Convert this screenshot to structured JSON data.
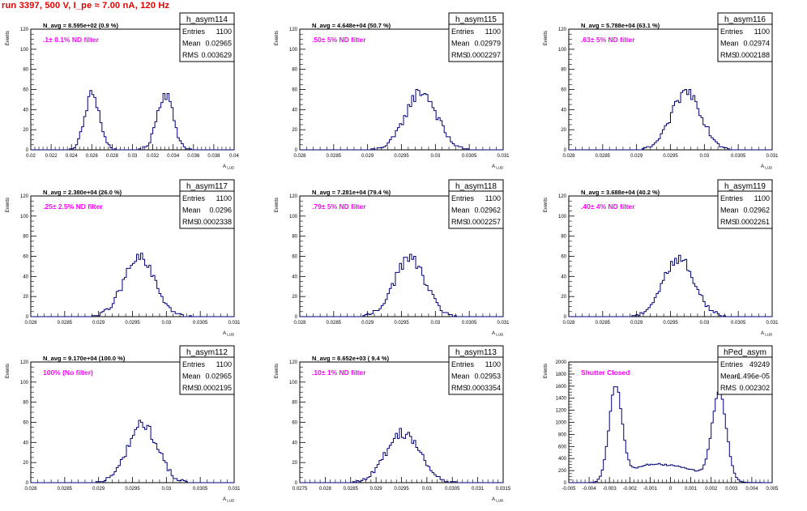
{
  "run_title": "run 3397,   500 V, I_pe ≈ 7.00 nA, 120 Hz",
  "colors": {
    "title": "#e00000",
    "histogram": "#00007a",
    "annotation": "#ff00ff"
  },
  "chart_data": [
    {
      "type": "histogram",
      "name": "h_asym114",
      "stats": {
        "labels": [
          "Entries",
          "Mean",
          "RMS"
        ],
        "values": [
          "1100",
          "0.02965",
          "0.003629"
        ]
      },
      "annotation": "N_avg = 8.595e+02 (0.9 %)",
      "label": ".1± 0.1% ND filter",
      "xlabel": "A_{LUD}",
      "ylabel": "Events",
      "xlim": [
        0.02,
        0.04
      ],
      "ylim": [
        0,
        120
      ],
      "xticks": [
        "0.02",
        "0.022",
        "0.024",
        "0.026",
        "0.028",
        "0.03",
        "0.032",
        "0.034",
        "0.036",
        "0.038",
        "0.04"
      ],
      "yticks": [
        "0",
        "20",
        "40",
        "60",
        "80",
        "100",
        "120"
      ],
      "peaks": [
        {
          "mean": 0.02605,
          "sigma": 0.00072,
          "amp": 56
        },
        {
          "mean": 0.0332,
          "sigma": 0.0008,
          "amp": 56
        }
      ]
    },
    {
      "type": "histogram",
      "name": "h_asym115",
      "stats": {
        "labels": [
          "Entries",
          "Mean",
          "RMS"
        ],
        "values": [
          "1100",
          "0.02979",
          "0.0002297"
        ]
      },
      "annotation": "N_avg = 4.648e+04 (50.7 %)",
      "label": ".50± 5% ND filter",
      "xlabel": "A_{LUD}",
      "ylabel": "Events",
      "xlim": [
        0.028,
        0.031
      ],
      "ylim": [
        0,
        120
      ],
      "xticks": [
        "0.028",
        "0.0285",
        "0.029",
        "0.0295",
        "0.03",
        "0.0305",
        "0.031"
      ],
      "yticks": [
        "0",
        "20",
        "40",
        "60",
        "80",
        "100",
        "120"
      ],
      "peaks": [
        {
          "mean": 0.02979,
          "sigma": 0.00023,
          "amp": 58
        }
      ]
    },
    {
      "type": "histogram",
      "name": "h_asym116",
      "stats": {
        "labels": [
          "Entries",
          "Mean",
          "RMS"
        ],
        "values": [
          "1100",
          "0.02974",
          "0.0002188"
        ]
      },
      "annotation": "N_avg = 5.788e+04 (63.1 %)",
      "label": ".63± 5% ND filter",
      "xlabel": "A_{LUD}",
      "ylabel": "Events",
      "xlim": [
        0.028,
        0.031
      ],
      "ylim": [
        0,
        120
      ],
      "xticks": [
        "0.028",
        "0.0285",
        "0.029",
        "0.0295",
        "0.03",
        "0.0305",
        "0.031"
      ],
      "yticks": [
        "0",
        "20",
        "40",
        "60",
        "80",
        "100",
        "120"
      ],
      "peaks": [
        {
          "mean": 0.02974,
          "sigma": 0.00022,
          "amp": 58
        }
      ]
    },
    {
      "type": "histogram",
      "name": "h_asym117",
      "stats": {
        "labels": [
          "Entries",
          "Mean",
          "RMS"
        ],
        "values": [
          "1100",
          "0.0296",
          "0.0002338"
        ]
      },
      "annotation": "N_avg = 2.380e+04 (26.0 %)",
      "label": ".25± 2.5% ND filter",
      "xlabel": "A_{LUD}",
      "ylabel": "Events",
      "xlim": [
        0.028,
        0.031
      ],
      "ylim": [
        0,
        120
      ],
      "xticks": [
        "0.028",
        "0.0285",
        "0.029",
        "0.0295",
        "0.03",
        "0.0305",
        "0.031"
      ],
      "yticks": [
        "0",
        "20",
        "40",
        "60",
        "80",
        "100",
        "120"
      ],
      "peaks": [
        {
          "mean": 0.0296,
          "sigma": 0.00023,
          "amp": 58
        }
      ]
    },
    {
      "type": "histogram",
      "name": "h_asym118",
      "stats": {
        "labels": [
          "Entries",
          "Mean",
          "RMS"
        ],
        "values": [
          "1100",
          "0.02962",
          "0.0002257"
        ]
      },
      "annotation": "N_avg = 7.281e+04 (79.4 %)",
      "label": ".79± 5% ND filter",
      "xlabel": "A_{LUD}",
      "ylabel": "Events",
      "xlim": [
        0.028,
        0.031
      ],
      "ylim": [
        0,
        120
      ],
      "xticks": [
        "0.028",
        "0.0285",
        "0.029",
        "0.0295",
        "0.03",
        "0.0305",
        "0.031"
      ],
      "yticks": [
        "0",
        "20",
        "40",
        "60",
        "80",
        "100",
        "120"
      ],
      "peaks": [
        {
          "mean": 0.02962,
          "sigma": 0.00023,
          "amp": 58
        }
      ]
    },
    {
      "type": "histogram",
      "name": "h_asym119",
      "stats": {
        "labels": [
          "Entries",
          "Mean",
          "RMS"
        ],
        "values": [
          "1100",
          "0.02962",
          "0.0002261"
        ]
      },
      "annotation": "N_avg = 3.688e+04 (40.2 %)",
      "label": ".40± 4% ND filter",
      "xlabel": "A_{LUD}",
      "ylabel": "Events",
      "xlim": [
        0.028,
        0.031
      ],
      "ylim": [
        0,
        120
      ],
      "xticks": [
        "0.028",
        "0.0285",
        "0.029",
        "0.0295",
        "0.03",
        "0.0305",
        "0.031"
      ],
      "yticks": [
        "0",
        "20",
        "40",
        "60",
        "80",
        "100",
        "120"
      ],
      "peaks": [
        {
          "mean": 0.02962,
          "sigma": 0.00023,
          "amp": 58
        }
      ]
    },
    {
      "type": "histogram",
      "name": "h_asym112",
      "stats": {
        "labels": [
          "Entries",
          "Mean",
          "RMS"
        ],
        "values": [
          "1100",
          "0.02965",
          "0.0002195"
        ]
      },
      "annotation": "N_avg = 9.170e+04 (100.0 %)",
      "label": "100% (No filter)",
      "xlabel": "A_{LUD}",
      "ylabel": "Events",
      "xlim": [
        0.028,
        0.031
      ],
      "ylim": [
        0,
        120
      ],
      "xticks": [
        "0.028",
        "0.0285",
        "0.029",
        "0.0295",
        "0.03",
        "0.0305",
        "0.031"
      ],
      "yticks": [
        "0",
        "20",
        "40",
        "60",
        "80",
        "100",
        "120"
      ],
      "peaks": [
        {
          "mean": 0.02965,
          "sigma": 0.00022,
          "amp": 58
        }
      ]
    },
    {
      "type": "histogram",
      "name": "h_asym113",
      "stats": {
        "labels": [
          "Entries",
          "Mean",
          "RMS"
        ],
        "values": [
          "1100",
          "0.02953",
          "0.0003354"
        ]
      },
      "annotation": "N_avg = 8.652e+03 ( 9.4 %)",
      "label": ".10± 1% ND filter",
      "xlabel": "A_{LUD}",
      "ylabel": "Events",
      "xlim": [
        0.0275,
        0.0315
      ],
      "ylim": [
        0,
        120
      ],
      "xticks": [
        "0.0275",
        "0.028",
        "0.0285",
        "0.029",
        "0.0295",
        "0.03",
        "0.0305",
        "0.031",
        "0.0315"
      ],
      "yticks": [
        "0",
        "20",
        "40",
        "60",
        "80",
        "100",
        "120"
      ],
      "peaks": [
        {
          "mean": 0.02953,
          "sigma": 0.00033,
          "amp": 50
        }
      ]
    },
    {
      "type": "histogram",
      "name": "hPed_asym",
      "stats": {
        "labels": [
          "Entries",
          "Mean",
          "RMS"
        ],
        "values": [
          "49249",
          "-1.496e-05",
          "0.002302"
        ]
      },
      "annotation": "",
      "label": "Shutter Closed",
      "xlabel": "",
      "ylabel": "Events",
      "xlim": [
        -0.005,
        0.005
      ],
      "ylim": [
        0,
        2000
      ],
      "xticks": [
        "-0.005",
        "-0.004",
        "-0.003",
        "-0.002",
        "-0.001",
        "0",
        "0.001",
        "0.002",
        "0.003",
        "0.004",
        "0.005"
      ],
      "yticks": [
        "0",
        "200",
        "400",
        "600",
        "800",
        "1000",
        "1200",
        "1400",
        "1600",
        "1800",
        "2000"
      ],
      "peaks": [
        {
          "mean": -0.0027,
          "sigma": 0.00032,
          "amp": 1550
        },
        {
          "mean": 0.0024,
          "sigma": 0.00035,
          "amp": 1450
        },
        {
          "mean": -0.0014,
          "sigma": 0.0008,
          "amp": 180
        },
        {
          "mean": 0.0003,
          "sigma": 0.0012,
          "amp": 260
        }
      ]
    }
  ]
}
